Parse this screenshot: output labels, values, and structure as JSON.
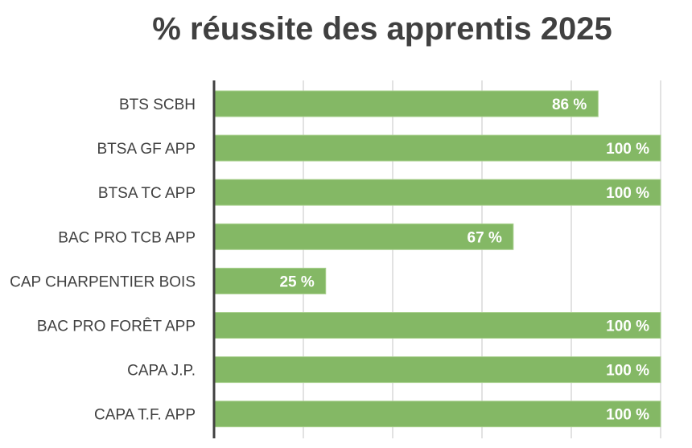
{
  "chart_data": {
    "type": "bar",
    "orientation": "horizontal",
    "title": "% réussite des apprentis 2025",
    "categories": [
      "BTS SCBH",
      "BTSA GF APP",
      "BTSA TC APP",
      "BAC PRO TCB APP",
      "CAP CHARPENTIER BOIS",
      "BAC PRO FORÊT APP",
      "CAPA J.P.",
      "CAPA T.F. APP"
    ],
    "values": [
      86,
      100,
      100,
      67,
      25,
      100,
      100,
      100
    ],
    "data_labels": [
      "86 %",
      "100 %",
      "100 %",
      "67 %",
      "25 %",
      "100 %",
      "100 %",
      "100 %"
    ],
    "xlim": [
      0,
      100
    ],
    "grid": true,
    "bar_color": "#84b865",
    "grid_color": "#d9d9d9",
    "axis_color": "#404040"
  }
}
